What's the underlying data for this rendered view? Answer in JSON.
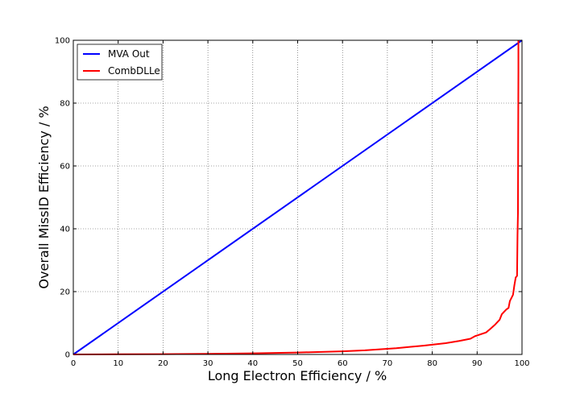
{
  "chart_data": {
    "type": "line",
    "xlabel": "Long Electron Efficiency / %",
    "ylabel": "Overall MissID Efficiency / %",
    "xlim": [
      0,
      100
    ],
    "ylim": [
      0,
      100
    ],
    "xticks": [
      "0",
      "10",
      "20",
      "30",
      "40",
      "50",
      "60",
      "70",
      "80",
      "90",
      "100"
    ],
    "yticks": [
      "0",
      "20",
      "40",
      "60",
      "80",
      "100"
    ],
    "grid": true,
    "legend_position": "top-left",
    "series": [
      {
        "name": "MVA Out",
        "color": "#0000ff",
        "x": [
          0,
          100
        ],
        "y": [
          0,
          100
        ]
      },
      {
        "name": "CombDLLe",
        "color": "#ff0000",
        "x": [
          0,
          10,
          20,
          30,
          40,
          50,
          60,
          65,
          70,
          72,
          75,
          78,
          80,
          83,
          86,
          88.5,
          89.5,
          92,
          93,
          94,
          95,
          95.5,
          96.5,
          97,
          97.3,
          98,
          98.3,
          98.6,
          98.9,
          99.0,
          99.1,
          99.15,
          99.2,
          99.2
        ],
        "y": [
          0,
          0.05,
          0.1,
          0.2,
          0.35,
          0.6,
          1.0,
          1.3,
          1.8,
          2.0,
          2.4,
          2.8,
          3.1,
          3.6,
          4.3,
          5.0,
          5.8,
          7.0,
          8.2,
          9.5,
          11.0,
          12.8,
          14.3,
          14.8,
          17.0,
          19.0,
          22.0,
          24.5,
          25.0,
          38.0,
          45.0,
          70.0,
          90.0,
          100.0
        ]
      }
    ]
  }
}
